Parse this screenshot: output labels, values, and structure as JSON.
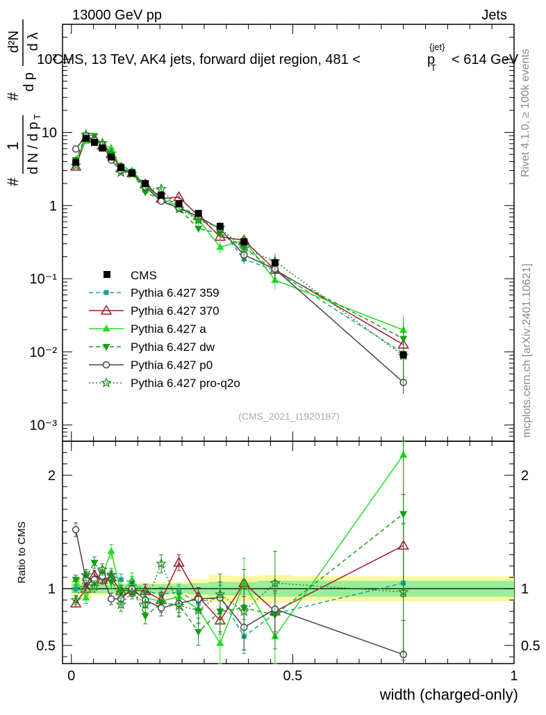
{
  "header": {
    "left": "13000 GeV pp",
    "right": "Jets"
  },
  "side_labels": {
    "rivet": "Rivet 4.1.0, ≥ 100k events",
    "mcplots": "mcplots.cern.ch [arXiv:2401.10621]"
  },
  "chart_data": {
    "type": "line",
    "title": "CMS, 13 TeV, AK4 jets, forward dijet region, 481 <",
    "title_pt": "p",
    "title_pt_sup": "{jet}",
    "title_pt_sub": "T",
    "title_end": "< 614 GeV",
    "ylabel": "1/N dN/dpT ... d²N/dpT dλ",
    "ylabel_parts": {
      "hash1": "#",
      "frac_num": "1",
      "frac_den": "d N / d p",
      "sub_T": "T",
      "hash2": "#",
      "d2N": "d²N",
      "dpT": "d p",
      "dlambda": "d λ"
    },
    "xlabel": "width (charged-only)",
    "ratio_ylabel": "Ratio to CMS",
    "watermark": "(CMS_2021_I1920187)",
    "xlim": [
      -0.02,
      1.0
    ],
    "ylim": [
      0.0006,
      300
    ],
    "ratio_ylim": [
      0.34,
      2.3
    ],
    "x_ticks": [
      "0",
      "0.5",
      "1"
    ],
    "y_ticks": [
      "10⁻³",
      "10⁻²",
      "10⁻¹",
      "1",
      "10",
      "10²"
    ],
    "ratio_ticks": [
      "0.5",
      "1",
      "2"
    ],
    "x": [
      0.01,
      0.033,
      0.052,
      0.07,
      0.09,
      0.112,
      0.137,
      0.167,
      0.203,
      0.243,
      0.287,
      0.336,
      0.39,
      0.46,
      0.75
    ],
    "bin_edges": [
      0.0,
      0.02,
      0.045,
      0.06,
      0.08,
      0.1,
      0.125,
      0.15,
      0.185,
      0.22,
      0.265,
      0.31,
      0.36,
      0.42,
      0.5,
      1.0
    ],
    "data": {
      "name": "CMS",
      "values": [
        3.9,
        8.3,
        7.3,
        6.1,
        4.6,
        3.3,
        2.8,
        2.0,
        1.38,
        1.06,
        0.78,
        0.52,
        0.32,
        0.165,
        0.0091
      ],
      "stat_band": [
        0.04,
        0.04,
        0.04,
        0.04,
        0.04,
        0.04,
        0.04,
        0.04,
        0.04,
        0.04,
        0.05,
        0.06,
        0.06,
        0.07,
        0.07
      ],
      "total_band": [
        0.07,
        0.09,
        0.06,
        0.06,
        0.05,
        0.05,
        0.05,
        0.05,
        0.06,
        0.06,
        0.08,
        0.12,
        0.11,
        0.12,
        0.11
      ]
    },
    "series": [
      {
        "name": "Pythia 6.427 359",
        "color": "#1aa38f",
        "style": "dashed",
        "marker": "square",
        "ratio": [
          1.0,
          1.03,
          1.09,
          1.12,
          1.12,
          1.08,
          1.06,
          0.98,
          0.95,
          0.97,
          0.88,
          0.93,
          0.58,
          0.78,
          1.05
        ],
        "ratio_err": [
          0.03,
          0.03,
          0.04,
          0.04,
          0.04,
          0.05,
          0.05,
          0.06,
          0.06,
          0.07,
          0.08,
          0.1,
          0.15,
          0.18,
          0.6
        ]
      },
      {
        "name": "Pythia 6.427 370",
        "color": "#9b1b2b",
        "style": "solid",
        "marker": "open-triangle",
        "ratio": [
          0.87,
          1.0,
          1.12,
          1.08,
          1.1,
          0.98,
          0.99,
          0.98,
          0.9,
          1.23,
          0.93,
          0.72,
          1.05,
          0.8,
          1.38
        ],
        "ratio_err": [
          0.03,
          0.04,
          0.04,
          0.04,
          0.05,
          0.05,
          0.06,
          0.06,
          0.07,
          0.07,
          0.08,
          0.1,
          0.12,
          0.18,
          0.45
        ]
      },
      {
        "name": "Pythia 6.427 a",
        "color": "#22dd22",
        "style": "solid",
        "marker": "triangle",
        "ratio": [
          1.08,
          0.92,
          1.05,
          1.12,
          1.33,
          0.96,
          1.08,
          0.92,
          0.89,
          0.93,
          0.82,
          0.52,
          1.05,
          0.58,
          2.18
        ],
        "ratio_err": [
          0.04,
          0.05,
          0.05,
          0.05,
          0.06,
          0.06,
          0.06,
          0.07,
          0.07,
          0.09,
          0.12,
          0.18,
          0.22,
          0.25,
          0.6
        ]
      },
      {
        "name": "Pythia 6.427 dw",
        "color": "#12a012",
        "style": "dashed",
        "marker": "triangle-down",
        "ratio": [
          1.08,
          1.1,
          1.23,
          1.1,
          1.06,
          0.97,
          1.01,
          0.76,
          0.87,
          0.86,
          0.62,
          0.8,
          0.83,
          0.77,
          1.66
        ],
        "ratio_err": [
          0.04,
          0.05,
          0.05,
          0.05,
          0.06,
          0.06,
          0.06,
          0.07,
          0.08,
          0.1,
          0.12,
          0.2,
          0.25,
          0.3,
          0.7
        ]
      },
      {
        "name": "Pythia 6.427 p0",
        "color": "#444444",
        "style": "solid",
        "marker": "open-circle",
        "ratio": [
          1.52,
          1.08,
          1.08,
          1.11,
          0.91,
          0.91,
          1.0,
          0.9,
          0.83,
          0.87,
          0.91,
          0.92,
          0.66,
          0.82,
          0.42
        ],
        "ratio_err": [
          0.06,
          0.05,
          0.05,
          0.05,
          0.05,
          0.05,
          0.06,
          0.06,
          0.07,
          0.08,
          0.1,
          0.14,
          0.2,
          0.25,
          0.3
        ]
      },
      {
        "name": "Pythia 6.427 pro-q2o",
        "color": "#1f8a1f",
        "style": "dotted",
        "marker": "star",
        "ratio": [
          0.9,
          1.12,
          1.02,
          1.17,
          1.12,
          0.86,
          0.97,
          0.86,
          1.22,
          0.85,
          0.81,
          0.95,
          0.8,
          1.05,
          0.97
        ],
        "ratio_err": [
          0.04,
          0.05,
          0.05,
          0.05,
          0.06,
          0.06,
          0.06,
          0.07,
          0.08,
          0.1,
          0.12,
          0.18,
          0.22,
          0.28,
          0.6
        ]
      }
    ]
  }
}
